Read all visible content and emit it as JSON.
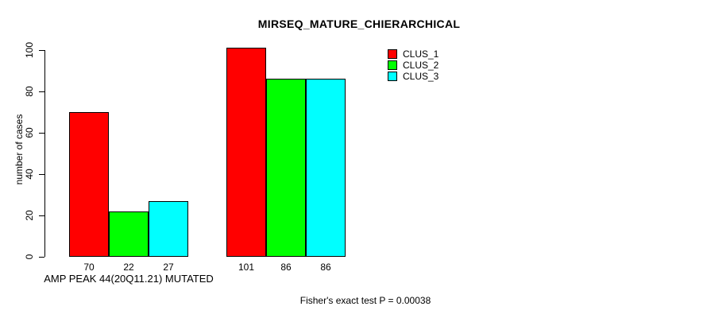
{
  "chart_data": {
    "type": "bar",
    "title": "MIRSEQ_MATURE_CHIERARCHICAL",
    "ylabel": "number of cases",
    "xlabel": "AMP PEAK 44(20Q11.21) MUTATED",
    "footnote": "Fisher's exact test P = 0.00038",
    "ylim": [
      0,
      100
    ],
    "yticks": [
      0,
      20,
      40,
      60,
      80,
      100
    ],
    "grid": false,
    "legend_position": "top-right",
    "groups": [
      {
        "label": "AMP PEAK 44(20Q11.21) MUTATED"
      },
      {
        "label": ""
      }
    ],
    "series": [
      {
        "name": "CLUS_1",
        "color": "#FF0000",
        "values": [
          70,
          101
        ]
      },
      {
        "name": "CLUS_2",
        "color": "#00FF00",
        "values": [
          22,
          86
        ]
      },
      {
        "name": "CLUS_3",
        "color": "#00FFFF",
        "values": [
          27,
          86
        ]
      }
    ],
    "colors": {
      "bar_border": "#000000",
      "text": "#000000",
      "background": "#FFFFFF"
    }
  }
}
